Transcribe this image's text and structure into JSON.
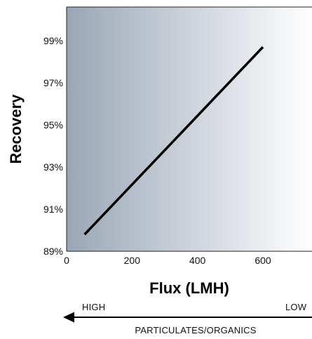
{
  "chart_data": {
    "type": "line",
    "title": "",
    "xlabel": "Flux (LMH)",
    "ylabel": "Recovery",
    "xlim": [
      0,
      750
    ],
    "ylim": [
      89,
      100.6
    ],
    "x_ticks": [
      {
        "value": 0,
        "label": "0"
      },
      {
        "value": 200,
        "label": "200"
      },
      {
        "value": 400,
        "label": "400"
      },
      {
        "value": 600,
        "label": "600"
      }
    ],
    "y_ticks": [
      {
        "value": 89,
        "label": "89%"
      },
      {
        "value": 91,
        "label": "91%"
      },
      {
        "value": 93,
        "label": "93%"
      },
      {
        "value": 95,
        "label": "95%"
      },
      {
        "value": 97,
        "label": "97%"
      },
      {
        "value": 99,
        "label": "99%"
      }
    ],
    "series": [
      {
        "x": [
          55,
          600
        ],
        "y": [
          89.8,
          98.7
        ]
      }
    ],
    "line_color": "#000000",
    "background_gradient": [
      "#9aa6b6",
      "#ffffff"
    ],
    "grid": false,
    "annotation": {
      "left_label": "HIGH",
      "right_label": "LOW",
      "caption": "PARTICULATES/ORGANICS",
      "arrow_direction": "left"
    }
  }
}
